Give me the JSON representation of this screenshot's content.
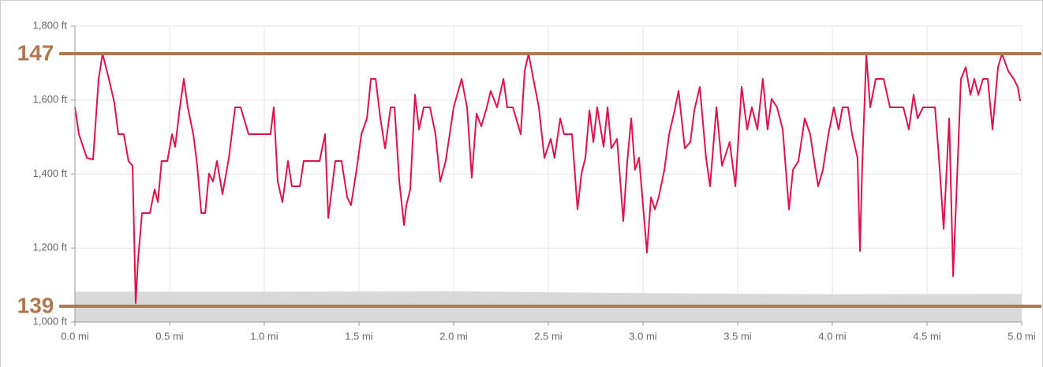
{
  "chart_data": {
    "type": "line",
    "xlim": [
      0,
      5
    ],
    "xticks": [
      {
        "value": 0,
        "label": "0.0 mi"
      },
      {
        "value": 0.5,
        "label": "0.5 mi"
      },
      {
        "value": 1,
        "label": "1.0 mi"
      },
      {
        "value": 1.5,
        "label": "1.5 mi"
      },
      {
        "value": 2,
        "label": "2.0 mi"
      },
      {
        "value": 2.5,
        "label": "2.5 mi"
      },
      {
        "value": 3,
        "label": "3.0 mi"
      },
      {
        "value": 3.5,
        "label": "3.5 mi"
      },
      {
        "value": 4,
        "label": "4.0 mi"
      },
      {
        "value": 4.5,
        "label": "4.5 mi"
      },
      {
        "value": 5,
        "label": "5.0 mi"
      }
    ],
    "ylim": [
      1000,
      1800
    ],
    "yticks": [
      {
        "value": 1000,
        "label": "1,000 ft"
      },
      {
        "value": 1200,
        "label": "1,200 ft"
      },
      {
        "value": 1400,
        "label": "1,400 ft"
      },
      {
        "value": 1600,
        "label": "1,600 ft"
      },
      {
        "value": 1800,
        "label": "1,800 ft"
      }
    ],
    "y2lim": [
      138.5,
      147.875
    ],
    "y2lines": [
      147,
      139
    ],
    "y2lines_color": "#b07850",
    "grid": true,
    "series": [
      {
        "type": "area",
        "color": "#d9d9d9",
        "x": [
          0,
          1,
          2,
          3,
          4,
          5
        ],
        "values": [
          1082,
          1082,
          1083,
          1078,
          1075,
          1076
        ]
      },
      {
        "type": "line",
        "axis": "y2",
        "color": "#e0124a",
        "x": [
          0,
          0.021,
          0.063,
          0.096,
          0.125,
          0.146,
          0.179,
          0.208,
          0.229,
          0.258,
          0.283,
          0.304,
          0.321,
          0.333,
          0.354,
          0.396,
          0.421,
          0.438,
          0.458,
          0.488,
          0.513,
          0.529,
          0.554,
          0.575,
          0.596,
          0.625,
          0.646,
          0.667,
          0.688,
          0.708,
          0.729,
          0.75,
          0.779,
          0.813,
          0.846,
          0.875,
          0.917,
          1.0,
          1.033,
          1.05,
          1.071,
          1.096,
          1.125,
          1.146,
          1.188,
          1.208,
          1.292,
          1.321,
          1.338,
          1.375,
          1.408,
          1.438,
          1.458,
          1.488,
          1.513,
          1.542,
          1.563,
          1.588,
          1.613,
          1.638,
          1.667,
          1.688,
          1.713,
          1.738,
          1.75,
          1.771,
          1.796,
          1.817,
          1.842,
          1.875,
          1.904,
          1.929,
          1.958,
          1.979,
          2.0,
          2.042,
          2.071,
          2.096,
          2.121,
          2.146,
          2.175,
          2.196,
          2.229,
          2.263,
          2.283,
          2.313,
          2.354,
          2.375,
          2.396,
          2.421,
          2.45,
          2.479,
          2.513,
          2.533,
          2.563,
          2.583,
          2.625,
          2.654,
          2.675,
          2.696,
          2.717,
          2.738,
          2.758,
          2.792,
          2.813,
          2.833,
          2.863,
          2.896,
          2.917,
          2.938,
          2.958,
          2.979,
          3.021,
          3.042,
          3.063,
          3.083,
          3.113,
          3.138,
          3.167,
          3.188,
          3.221,
          3.25,
          3.271,
          3.3,
          3.333,
          3.354,
          3.388,
          3.417,
          3.458,
          3.488,
          3.521,
          3.55,
          3.575,
          3.604,
          3.633,
          3.658,
          3.679,
          3.708,
          3.738,
          3.771,
          3.792,
          3.821,
          3.854,
          3.883,
          3.904,
          3.925,
          3.95,
          3.979,
          4.008,
          4.033,
          4.054,
          4.083,
          4.104,
          4.133,
          4.146,
          4.158,
          4.179,
          4.2,
          4.229,
          4.271,
          4.304,
          4.342,
          4.375,
          4.404,
          4.429,
          4.45,
          4.479,
          4.542,
          4.563,
          4.588,
          4.617,
          4.638,
          4.658,
          4.679,
          4.704,
          4.729,
          4.75,
          4.771,
          4.796,
          4.821,
          4.846,
          4.875,
          4.896,
          4.929,
          4.958,
          4.979,
          4.992
        ],
        "values": [
          145.3,
          144.45,
          143.7,
          143.65,
          146.2,
          147,
          146.2,
          145.45,
          144.45,
          144.45,
          143.6,
          143.45,
          139.1,
          140.45,
          141.95,
          141.95,
          142.7,
          142.3,
          143.6,
          143.6,
          144.45,
          144.05,
          145.3,
          146.2,
          145.3,
          144.45,
          143.45,
          141.95,
          141.95,
          143.2,
          142.95,
          143.6,
          142.55,
          143.7,
          145.3,
          145.3,
          144.45,
          144.45,
          144.45,
          145.3,
          142.95,
          142.3,
          143.6,
          142.8,
          142.8,
          143.6,
          143.6,
          144.45,
          141.8,
          143.6,
          143.6,
          142.45,
          142.2,
          143.35,
          144.45,
          144.95,
          146.2,
          146.2,
          144.95,
          144,
          145.3,
          145.3,
          142.95,
          141.57,
          142.2,
          142.7,
          145.7,
          144.6,
          145.3,
          145.3,
          144.45,
          142.95,
          143.6,
          144.45,
          145.3,
          146.2,
          145.3,
          143.07,
          145.1,
          144.7,
          145.3,
          145.82,
          145.3,
          146.2,
          145.3,
          145.3,
          144.45,
          146.45,
          147,
          146.2,
          145.3,
          143.7,
          144.3,
          143.7,
          144.95,
          144.45,
          144.45,
          142.07,
          143.2,
          143.7,
          145.2,
          144.2,
          145.3,
          144.05,
          145.3,
          144,
          144.3,
          141.7,
          143.6,
          144.95,
          143.32,
          143.7,
          140.7,
          142.45,
          142.07,
          142.45,
          143.32,
          144.45,
          145.2,
          145.82,
          144,
          144.2,
          145.2,
          145.95,
          143.7,
          142.8,
          145.3,
          143.45,
          144.2,
          142.8,
          145.95,
          144.6,
          145.3,
          144.6,
          146.2,
          144.6,
          145.57,
          145.3,
          144.6,
          142.07,
          143.32,
          143.6,
          144.95,
          144.45,
          143.6,
          142.8,
          143.32,
          144.45,
          145.3,
          144.6,
          145.3,
          145.3,
          144.45,
          143.7,
          140.75,
          143.45,
          146.95,
          145.3,
          146.2,
          146.2,
          145.3,
          145.3,
          145.3,
          144.6,
          145.7,
          144.95,
          145.3,
          145.3,
          143.7,
          141.45,
          144.95,
          139.95,
          142.95,
          146.2,
          146.57,
          145.7,
          146.2,
          145.7,
          146.2,
          146.2,
          144.6,
          146.57,
          147,
          146.45,
          146.2,
          145.95,
          145.5
        ]
      }
    ]
  }
}
